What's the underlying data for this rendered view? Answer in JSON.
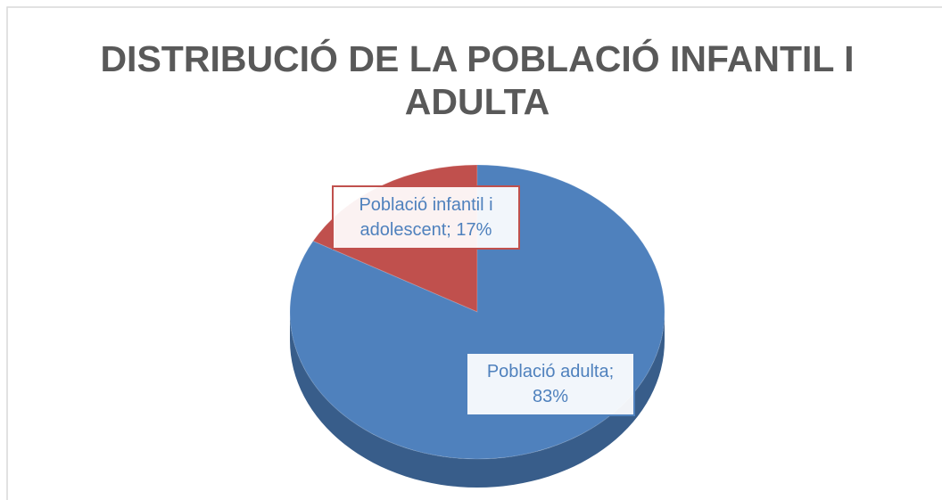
{
  "chart_data": {
    "type": "pie",
    "title": "DISTRIBUCIÓ DE LA POBLACIÓ INFANTIL I ADULTA",
    "categories": [
      "Població infantil i adolescent",
      "Població adulta"
    ],
    "values": [
      17,
      83
    ],
    "value_labels": [
      "Població infantil i adolescent; 17%",
      "Població adulta; 83%"
    ],
    "colors": [
      "#c0504d",
      "#4f81bd"
    ]
  }
}
